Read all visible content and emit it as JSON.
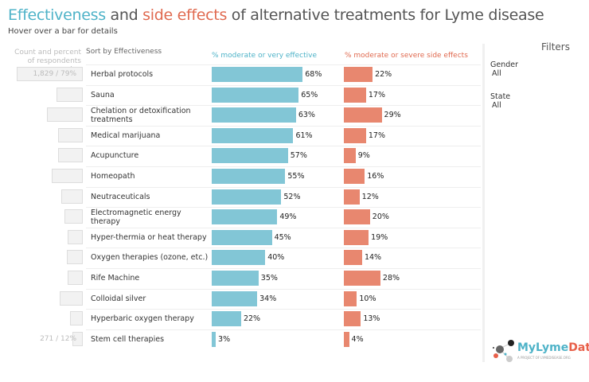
{
  "title": {
    "part1": "Effectiveness",
    "part2": " and ",
    "part3": "side effects",
    "part4": " of alternative treatments for Lyme disease"
  },
  "subtitle": "Hover over a bar for details",
  "headers": {
    "count": "Count and percent of respondents using",
    "sort": "Sort by Effectiveness",
    "effectiveness": "% moderate or very effective",
    "side_effects": "% moderate or severe side effects"
  },
  "filters": {
    "title": "Filters",
    "items": [
      {
        "label": "Gender",
        "value": "All"
      },
      {
        "label": "State",
        "value": "All"
      }
    ]
  },
  "logo": {
    "name_a": "MyLyme",
    "name_b": "Data",
    "tagline": "A PROJECT OF LYMEDISEASE.ORG"
  },
  "colors": {
    "effectiveness": "#82c6d6",
    "side_effects": "#e8876f",
    "count": "#f2f2f2"
  },
  "chart_data": {
    "type": "bar",
    "categories": [
      "Herbal protocols",
      "Sauna",
      "Chelation or detoxification treatments",
      "Medical marijuana",
      "Acupuncture",
      "Homeopath",
      "Neutraceuticals",
      "Electromagnetic energy therapy",
      "Hyper-thermia or heat therapy",
      "Oxygen therapies (ozone, etc.)",
      "Rife Machine",
      "Colloidal silver",
      "Hyperbaric oxygen therapy",
      "Stem cell therapies"
    ],
    "series": [
      {
        "name": "% moderate or very effective",
        "values": [
          68,
          65,
          63,
          61,
          57,
          55,
          52,
          49,
          45,
          40,
          35,
          34,
          22,
          3
        ]
      },
      {
        "name": "% moderate or severe side effects",
        "values": [
          22,
          17,
          29,
          17,
          9,
          16,
          12,
          20,
          19,
          14,
          28,
          10,
          13,
          4
        ]
      },
      {
        "name": "Count and percent of respondents using",
        "values": [
          79,
          31,
          43,
          30,
          30,
          37,
          26,
          22,
          18,
          19,
          18,
          28,
          15,
          12
        ]
      }
    ],
    "count_labels": [
      "1,829 / 79%",
      "",
      "",
      "",
      "",
      "",
      "",
      "",
      "",
      "",
      "",
      "",
      "",
      "271 / 12%"
    ],
    "xlim": [
      0,
      100
    ]
  }
}
